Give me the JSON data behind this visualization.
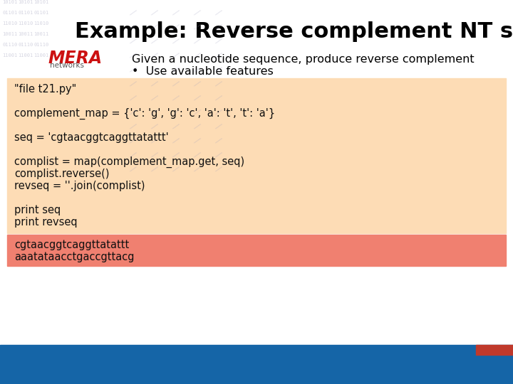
{
  "title": "Example: Reverse complement NT sequence",
  "subtitle": "Given a nucleotide sequence, produce reverse complement",
  "bullet": "Use available features",
  "code_lines": [
    "\"file t21.py\"",
    "",
    "complement_map = {'c': 'g', 'g': 'c', 'a': 't', 't': 'a'}",
    "",
    "seq = 'cgtaacggtcaggttatattt'",
    "",
    "complist = map(complement_map.get, seq)",
    "complist.reverse()",
    "revseq = ''.join(complist)",
    "",
    "print seq",
    "print revseq"
  ],
  "output_lines": [
    "cgtaacggtcaggttatattt",
    "aaatataacctgaccgttacg"
  ],
  "code_bg": "#FDDCB5",
  "output_bg": "#F08070",
  "bg_color": "#FFFFFF",
  "bottom_bar_color": "#1565A7",
  "bottom_bar_red": "#C0392B",
  "title_fontsize": 22,
  "body_fontsize": 11.5,
  "code_fontsize": 10.5
}
